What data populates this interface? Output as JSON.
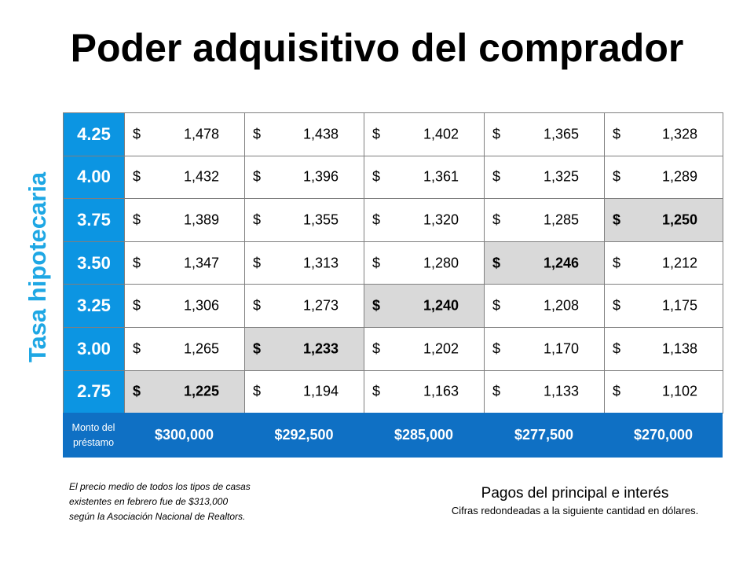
{
  "title": "Poder adquisitivo del comprador",
  "side_label": "Tasa hipotecaria",
  "table": {
    "currency_symbol": "$",
    "rows": [
      {
        "rate": "4.25",
        "payments": [
          "1,478",
          "1,438",
          "1,402",
          "1,365",
          "1,328"
        ],
        "highlighted_column": null
      },
      {
        "rate": "4.00",
        "payments": [
          "1,432",
          "1,396",
          "1,361",
          "1,325",
          "1,289"
        ],
        "highlighted_column": null
      },
      {
        "rate": "3.75",
        "payments": [
          "1,389",
          "1,355",
          "1,320",
          "1,285",
          "1,250"
        ],
        "highlighted_column": 4
      },
      {
        "rate": "3.50",
        "payments": [
          "1,347",
          "1,313",
          "1,280",
          "1,246",
          "1,212"
        ],
        "highlighted_column": 3
      },
      {
        "rate": "3.25",
        "payments": [
          "1,306",
          "1,273",
          "1,240",
          "1,208",
          "1,175"
        ],
        "highlighted_column": 2
      },
      {
        "rate": "3.00",
        "payments": [
          "1,265",
          "1,233",
          "1,202",
          "1,170",
          "1,138"
        ],
        "highlighted_column": 1
      },
      {
        "rate": "2.75",
        "payments": [
          "1,225",
          "1,194",
          "1,163",
          "1,133",
          "1,102"
        ],
        "highlighted_column": 0
      }
    ],
    "footer_label_lines": [
      "Monto del",
      "préstamo"
    ],
    "loan_amounts": [
      "$300,000",
      "$292,500",
      "$285,000",
      "$277,500",
      "$270,000"
    ]
  },
  "note_lines": [
    "El precio medio de todos los tipos de casas",
    "existentes en febrero fue de $313,000",
    "según la Asociación Nacional de Realtors."
  ],
  "payments_title": "Pagos del principal e interés",
  "payments_subtitle": "Cifras redondeadas a la siguiente cantidad en dólares."
}
